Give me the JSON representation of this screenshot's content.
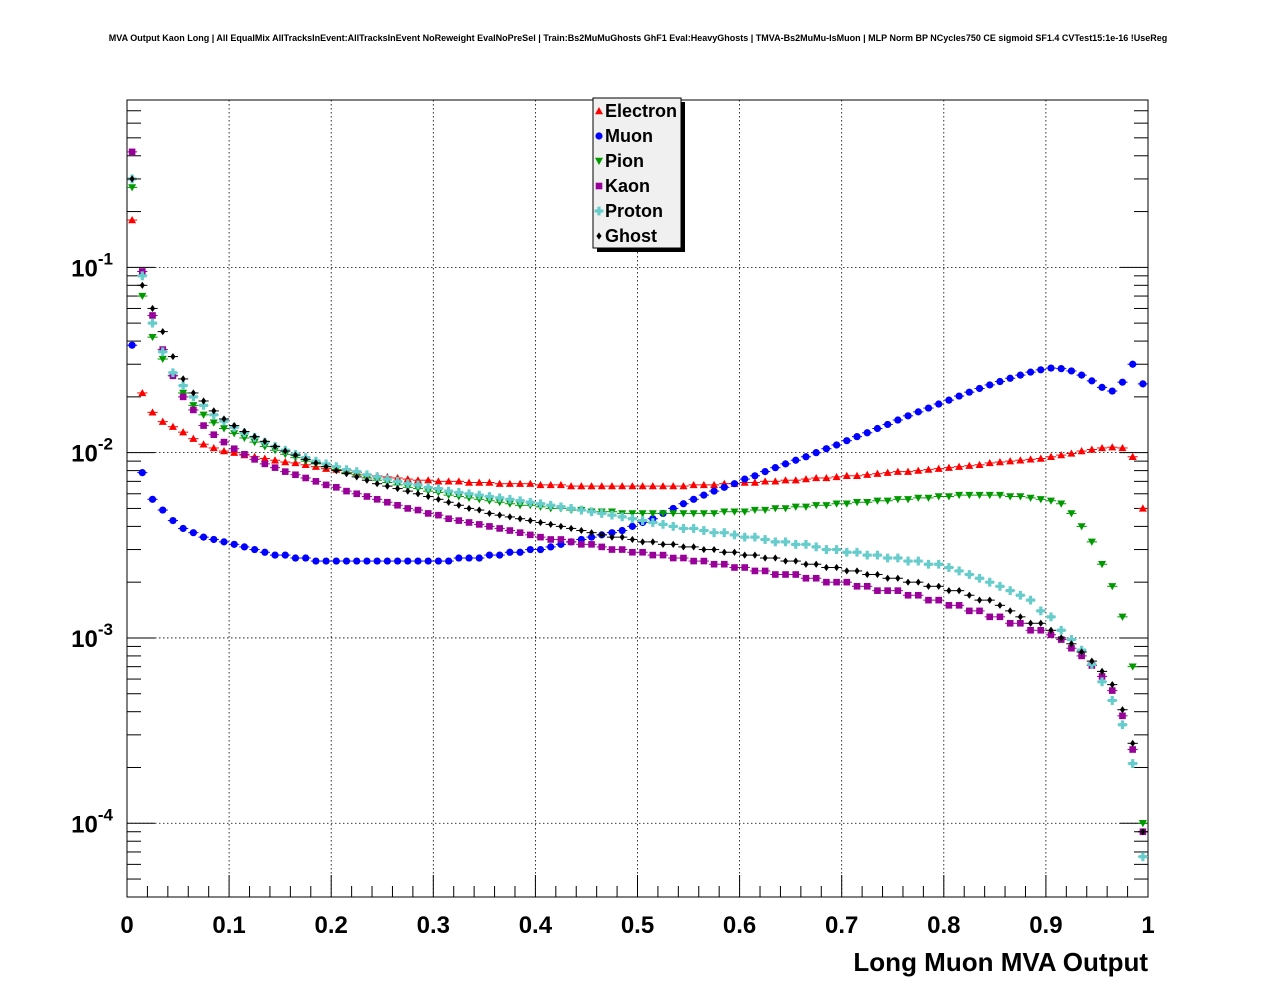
{
  "chart_data": {
    "type": "scatter",
    "title": "MVA Output Kaon Long | All EqualMix AllTracksInEvent:AllTracksInEvent NoReweight EvalNoPreSel | Train:Bs2MuMuGhosts GhF1 Eval:HeavyGhosts | TMVA-Bs2MuMu-IsMuon | MLP Norm BP NCycles750 CE sigmoid SF1.4 CVTest15:1e-16 !UseReg",
    "xlabel": "Long Muon MVA Output",
    "ylabel": "",
    "xlim": [
      0,
      1
    ],
    "ylim": [
      4e-05,
      0.8
    ],
    "yscale": "log",
    "grid": true,
    "legend_position": "top-center",
    "x_tick_labels": [
      "0",
      "0.1",
      "0.2",
      "0.3",
      "0.4",
      "0.5",
      "0.6",
      "0.7",
      "0.8",
      "0.9",
      "1"
    ],
    "x_ticks": [
      0,
      0.1,
      0.2,
      0.3,
      0.4,
      0.5,
      0.6,
      0.7,
      0.8,
      0.9,
      1
    ],
    "y_ticks": [
      {
        "value": 0.1,
        "base": "10",
        "exp": "-1"
      },
      {
        "value": 0.01,
        "base": "10",
        "exp": "-2"
      },
      {
        "value": 0.001,
        "base": "10",
        "exp": "-3"
      },
      {
        "value": 0.0001,
        "base": "10",
        "exp": "-4"
      }
    ],
    "x": [
      0.005,
      0.015,
      0.025,
      0.035,
      0.045,
      0.055,
      0.065,
      0.075,
      0.085,
      0.095,
      0.105,
      0.115,
      0.125,
      0.135,
      0.145,
      0.155,
      0.165,
      0.175,
      0.185,
      0.195,
      0.205,
      0.215,
      0.225,
      0.235,
      0.245,
      0.255,
      0.265,
      0.275,
      0.285,
      0.295,
      0.305,
      0.315,
      0.325,
      0.335,
      0.345,
      0.355,
      0.365,
      0.375,
      0.385,
      0.395,
      0.405,
      0.415,
      0.425,
      0.435,
      0.445,
      0.455,
      0.465,
      0.475,
      0.485,
      0.495,
      0.505,
      0.515,
      0.525,
      0.535,
      0.545,
      0.555,
      0.565,
      0.575,
      0.585,
      0.595,
      0.605,
      0.615,
      0.625,
      0.635,
      0.645,
      0.655,
      0.665,
      0.675,
      0.685,
      0.695,
      0.705,
      0.715,
      0.725,
      0.735,
      0.745,
      0.755,
      0.765,
      0.775,
      0.785,
      0.795,
      0.805,
      0.815,
      0.825,
      0.835,
      0.845,
      0.855,
      0.865,
      0.875,
      0.885,
      0.895,
      0.905,
      0.915,
      0.925,
      0.935,
      0.945,
      0.955,
      0.965,
      0.975,
      0.985,
      0.995
    ],
    "series": [
      {
        "name": "Electron",
        "color": "#ff0000",
        "marker": "triangle-up",
        "values": [
          0.18,
          0.021,
          0.0165,
          0.0147,
          0.0138,
          0.0129,
          0.0119,
          0.0111,
          0.0106,
          0.0102,
          0.01,
          0.0097,
          0.0095,
          0.0093,
          0.0091,
          0.0089,
          0.0088,
          0.0086,
          0.0084,
          0.0082,
          0.0081,
          0.008,
          0.0078,
          0.0076,
          0.0075,
          0.0074,
          0.0073,
          0.0072,
          0.0071,
          0.0071,
          0.007,
          0.007,
          0.007,
          0.0069,
          0.0069,
          0.0069,
          0.0068,
          0.0068,
          0.0068,
          0.0068,
          0.0067,
          0.0067,
          0.0067,
          0.0066,
          0.0066,
          0.0066,
          0.0066,
          0.0066,
          0.0066,
          0.0066,
          0.0066,
          0.0066,
          0.0066,
          0.0066,
          0.0066,
          0.0067,
          0.0067,
          0.0067,
          0.0068,
          0.0068,
          0.0069,
          0.0069,
          0.007,
          0.007,
          0.0071,
          0.0071,
          0.0072,
          0.0073,
          0.0073,
          0.0074,
          0.0075,
          0.0075,
          0.0076,
          0.0077,
          0.0078,
          0.0079,
          0.0079,
          0.008,
          0.0081,
          0.0082,
          0.0083,
          0.0084,
          0.0085,
          0.0086,
          0.0088,
          0.0089,
          0.009,
          0.0091,
          0.0092,
          0.0093,
          0.0095,
          0.0097,
          0.0099,
          0.0102,
          0.0104,
          0.0106,
          0.0107,
          0.0106,
          0.0095,
          0.005
        ]
      },
      {
        "name": "Muon",
        "color": "#0000ff",
        "marker": "circle",
        "values": [
          0.038,
          0.0078,
          0.0056,
          0.0049,
          0.0043,
          0.0039,
          0.0037,
          0.0035,
          0.0034,
          0.0033,
          0.0032,
          0.0031,
          0.003,
          0.0029,
          0.0028,
          0.0028,
          0.0027,
          0.0027,
          0.0026,
          0.0026,
          0.0026,
          0.0026,
          0.0026,
          0.0026,
          0.0026,
          0.0026,
          0.0026,
          0.0026,
          0.0026,
          0.0026,
          0.0026,
          0.0026,
          0.0027,
          0.0027,
          0.0027,
          0.0028,
          0.0028,
          0.0029,
          0.0029,
          0.003,
          0.003,
          0.0031,
          0.0032,
          0.0033,
          0.0034,
          0.0035,
          0.0036,
          0.0037,
          0.0038,
          0.004,
          0.0042,
          0.0044,
          0.0047,
          0.005,
          0.0053,
          0.0056,
          0.0059,
          0.0062,
          0.0065,
          0.0068,
          0.0072,
          0.0075,
          0.0079,
          0.0083,
          0.0087,
          0.0091,
          0.0095,
          0.01,
          0.0105,
          0.011,
          0.0116,
          0.0122,
          0.0128,
          0.0135,
          0.0142,
          0.015,
          0.0158,
          0.0166,
          0.0174,
          0.0183,
          0.0192,
          0.0202,
          0.0212,
          0.0222,
          0.0232,
          0.0242,
          0.0252,
          0.0262,
          0.0272,
          0.028,
          0.0286,
          0.0284,
          0.0276,
          0.0262,
          0.0244,
          0.0225,
          0.0215,
          0.024,
          0.03,
          0.0235
        ]
      },
      {
        "name": "Pion",
        "color": "#009900",
        "marker": "triangle-down",
        "values": [
          0.27,
          0.07,
          0.042,
          0.032,
          0.026,
          0.021,
          0.018,
          0.016,
          0.0145,
          0.0135,
          0.0127,
          0.012,
          0.0114,
          0.0108,
          0.0103,
          0.0098,
          0.0094,
          0.009,
          0.0087,
          0.0084,
          0.0081,
          0.0078,
          0.0076,
          0.0073,
          0.0071,
          0.0069,
          0.0067,
          0.0065,
          0.0064,
          0.0062,
          0.0061,
          0.0059,
          0.0058,
          0.0057,
          0.0056,
          0.0055,
          0.0054,
          0.0053,
          0.0052,
          0.0052,
          0.0051,
          0.005,
          0.005,
          0.0049,
          0.0049,
          0.0048,
          0.0048,
          0.0048,
          0.0047,
          0.0047,
          0.0047,
          0.0047,
          0.0047,
          0.0047,
          0.0047,
          0.0047,
          0.0047,
          0.0047,
          0.0048,
          0.0048,
          0.0048,
          0.0049,
          0.0049,
          0.005,
          0.005,
          0.0051,
          0.0051,
          0.0052,
          0.0052,
          0.0053,
          0.0053,
          0.0054,
          0.0054,
          0.0055,
          0.0055,
          0.0056,
          0.0056,
          0.0057,
          0.0057,
          0.0058,
          0.0058,
          0.0059,
          0.0059,
          0.0059,
          0.0059,
          0.0059,
          0.0058,
          0.0058,
          0.0057,
          0.0056,
          0.0055,
          0.0053,
          0.0047,
          0.004,
          0.0033,
          0.0025,
          0.0019,
          0.0013,
          0.0007,
          0.0001
        ]
      },
      {
        "name": "Kaon",
        "color": "#990099",
        "marker": "square",
        "values": [
          0.42,
          0.095,
          0.055,
          0.036,
          0.026,
          0.02,
          0.017,
          0.014,
          0.0125,
          0.0114,
          0.0105,
          0.0098,
          0.0092,
          0.0087,
          0.0083,
          0.0079,
          0.0076,
          0.0073,
          0.007,
          0.0067,
          0.0065,
          0.0062,
          0.006,
          0.0058,
          0.0056,
          0.0054,
          0.0052,
          0.005,
          0.0049,
          0.0047,
          0.0046,
          0.0044,
          0.0043,
          0.0042,
          0.0041,
          0.004,
          0.0039,
          0.0038,
          0.0037,
          0.0036,
          0.0035,
          0.0034,
          0.0034,
          0.0033,
          0.0032,
          0.0032,
          0.0031,
          0.003,
          0.003,
          0.0029,
          0.0029,
          0.0028,
          0.0028,
          0.0027,
          0.0027,
          0.0026,
          0.0026,
          0.0025,
          0.0025,
          0.0024,
          0.0024,
          0.0023,
          0.0023,
          0.0022,
          0.0022,
          0.0022,
          0.0021,
          0.0021,
          0.002,
          0.002,
          0.002,
          0.0019,
          0.0019,
          0.0018,
          0.0018,
          0.0018,
          0.0017,
          0.0017,
          0.0016,
          0.0016,
          0.0015,
          0.0015,
          0.0014,
          0.0014,
          0.0013,
          0.0013,
          0.0012,
          0.0012,
          0.0011,
          0.0011,
          0.00104,
          0.00098,
          0.00088,
          0.0008,
          0.00071,
          0.00062,
          0.00052,
          0.00038,
          0.00025,
          9e-05
        ]
      },
      {
        "name": "Proton",
        "color": "#66cccc",
        "marker": "cross",
        "values": [
          0.3,
          0.09,
          0.05,
          0.035,
          0.027,
          0.023,
          0.02,
          0.018,
          0.016,
          0.0148,
          0.0137,
          0.0128,
          0.0121,
          0.0114,
          0.0108,
          0.0103,
          0.0098,
          0.0094,
          0.009,
          0.0087,
          0.0084,
          0.0081,
          0.0079,
          0.0076,
          0.0074,
          0.0072,
          0.007,
          0.0068,
          0.0067,
          0.0065,
          0.0064,
          0.0062,
          0.0061,
          0.006,
          0.0059,
          0.0058,
          0.0057,
          0.0056,
          0.0055,
          0.0054,
          0.0053,
          0.0052,
          0.0051,
          0.005,
          0.0049,
          0.0048,
          0.0047,
          0.0046,
          0.0045,
          0.0044,
          0.0043,
          0.0042,
          0.0041,
          0.004,
          0.0039,
          0.0039,
          0.0038,
          0.0037,
          0.0037,
          0.0036,
          0.0035,
          0.0035,
          0.0034,
          0.0033,
          0.0033,
          0.0032,
          0.0032,
          0.0031,
          0.003,
          0.003,
          0.0029,
          0.0029,
          0.0028,
          0.0028,
          0.0027,
          0.0027,
          0.0026,
          0.0026,
          0.0025,
          0.0025,
          0.0024,
          0.0023,
          0.0022,
          0.0021,
          0.002,
          0.0019,
          0.0018,
          0.0017,
          0.0016,
          0.0014,
          0.0013,
          0.0011,
          0.00098,
          0.00086,
          0.00072,
          0.00058,
          0.00046,
          0.00034,
          0.00021,
          6.6e-05
        ]
      },
      {
        "name": "Ghost",
        "color": "#000000",
        "marker": "diamond",
        "values": [
          0.3,
          0.08,
          0.06,
          0.045,
          0.033,
          0.025,
          0.021,
          0.019,
          0.0168,
          0.0152,
          0.014,
          0.013,
          0.0122,
          0.0115,
          0.0108,
          0.0102,
          0.0097,
          0.0092,
          0.0088,
          0.0084,
          0.008,
          0.0077,
          0.0074,
          0.0071,
          0.0068,
          0.0066,
          0.0064,
          0.0062,
          0.006,
          0.0058,
          0.0056,
          0.0054,
          0.0052,
          0.005,
          0.0049,
          0.0047,
          0.0046,
          0.0045,
          0.0044,
          0.0043,
          0.0042,
          0.0041,
          0.004,
          0.0039,
          0.0038,
          0.0037,
          0.0036,
          0.0035,
          0.0035,
          0.0034,
          0.0033,
          0.0033,
          0.0032,
          0.0032,
          0.0031,
          0.0031,
          0.003,
          0.003,
          0.0029,
          0.0029,
          0.0028,
          0.0028,
          0.0027,
          0.0027,
          0.0026,
          0.0026,
          0.0025,
          0.0025,
          0.0024,
          0.0024,
          0.0023,
          0.0023,
          0.0022,
          0.0022,
          0.0021,
          0.0021,
          0.002,
          0.002,
          0.0019,
          0.0019,
          0.0018,
          0.0018,
          0.0017,
          0.0016,
          0.0016,
          0.0015,
          0.0014,
          0.0013,
          0.0012,
          0.0012,
          0.0011,
          0.001,
          0.00093,
          0.00084,
          0.00075,
          0.00066,
          0.00056,
          0.00041,
          0.00027,
          9e-05
        ]
      }
    ]
  }
}
